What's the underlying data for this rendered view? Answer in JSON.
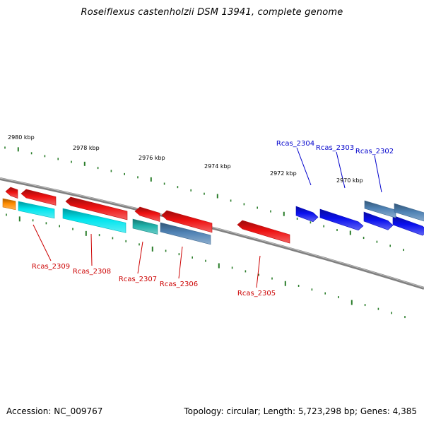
{
  "title": "Roseiflexus castenholzii DSM 13941, complete genome",
  "footer": {
    "accession": "Accession: NC_009767",
    "summary": "Topology: circular; Length: 5,723,298 bp; Genes: 4,385"
  },
  "colors": {
    "forward_label": "#0000cc",
    "reverse_label": "#cc0000",
    "backbone": "#808080",
    "tick": "#2a7d2a",
    "red": "#ee1111",
    "cyan": "#00e5ee",
    "teal": "#20b2aa",
    "steel": "#4f82b4",
    "blue": "#0a10ee",
    "orange": "#ff8c00"
  },
  "position_labels": [
    "2980 kbp",
    "2978 kbp",
    "2976 kbp",
    "2974 kbp",
    "2972 kbp",
    "2970 kbp"
  ],
  "gene_labels": [
    {
      "text": "Rcas_2304",
      "strand": "forward"
    },
    {
      "text": "Rcas_2303",
      "strand": "forward"
    },
    {
      "text": "Rcas_2302",
      "strand": "forward"
    },
    {
      "text": "Rcas_2309",
      "strand": "reverse"
    },
    {
      "text": "Rcas_2308",
      "strand": "reverse"
    },
    {
      "text": "Rcas_2307",
      "strand": "reverse"
    },
    {
      "text": "Rcas_2306",
      "strand": "reverse"
    },
    {
      "text": "Rcas_2305",
      "strand": "reverse"
    }
  ]
}
